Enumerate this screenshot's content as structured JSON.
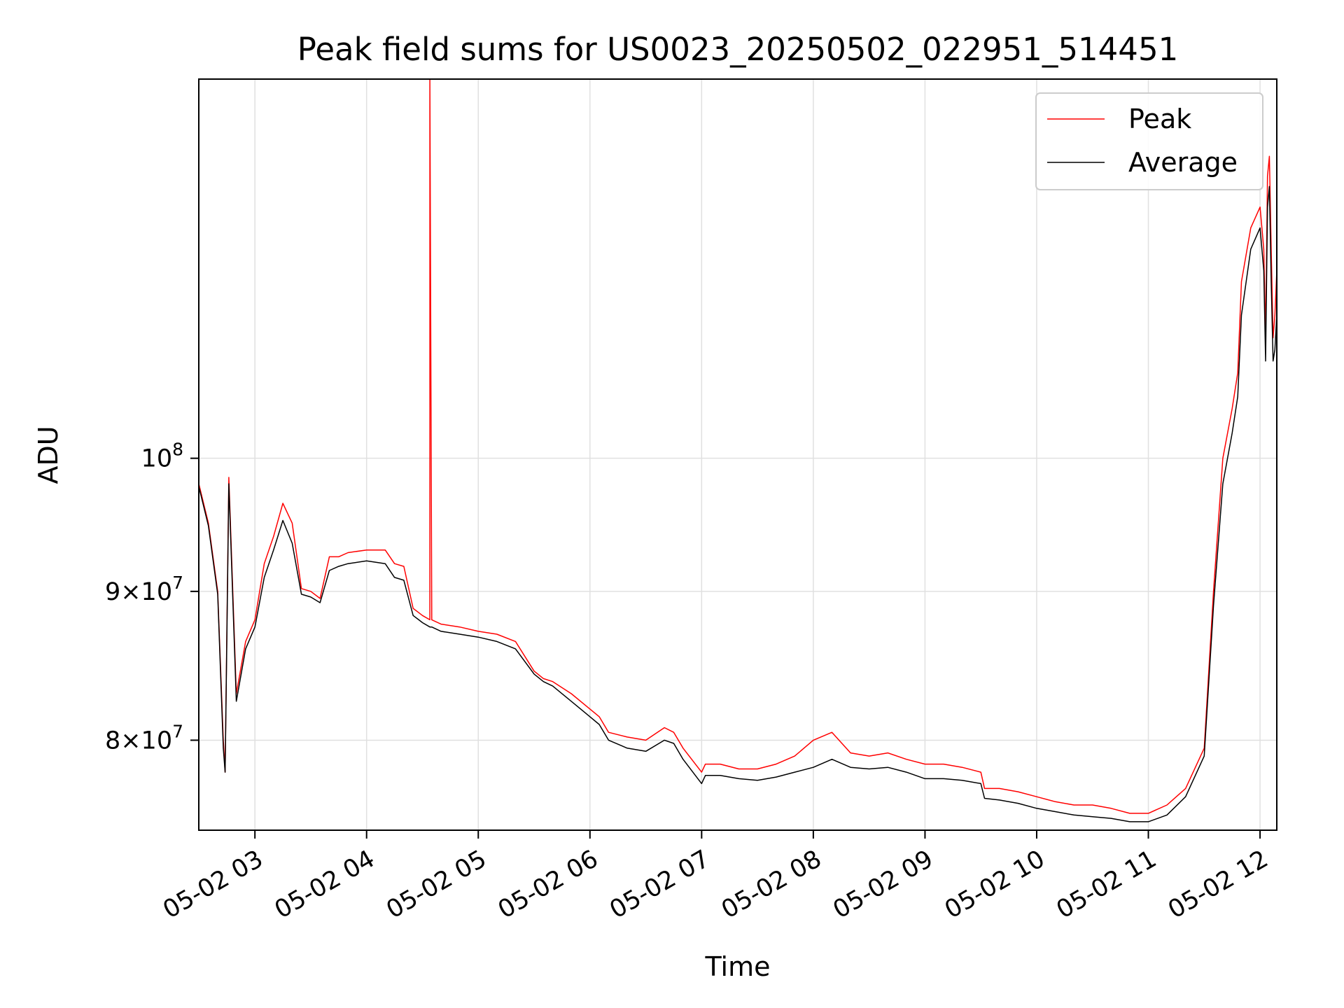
{
  "chart_data": {
    "type": "line",
    "title": "Peak field sums for US0023_20250502_022951_514451",
    "xlabel": "Time",
    "ylabel": "ADU",
    "x_type": "datetime",
    "y_scale": "log",
    "xlim": [
      "2025-05-02 02:29:51",
      "2025-05-02 12:09:00"
    ],
    "ylim": [
      74500000,
      135000000
    ],
    "x_ticks": [
      "05-02 03",
      "05-02 04",
      "05-02 05",
      "05-02 06",
      "05-02 07",
      "05-02 08",
      "05-02 09",
      "05-02 10",
      "05-02 11",
      "05-02 12"
    ],
    "y_ticks": [
      {
        "value": 80000000,
        "base": "8",
        "sup": "7"
      },
      {
        "value": 90000000,
        "base": "9",
        "sup": "7"
      },
      {
        "value": 100000000,
        "base": "10",
        "sup": "8"
      }
    ],
    "grid": true,
    "legend": "upper right",
    "series": [
      {
        "name": "Peak",
        "color": "#ff0000",
        "x": [
          "02:29:51",
          "02:35",
          "02:40",
          "02:43",
          "02:44",
          "02:45",
          "02:46",
          "02:50",
          "02:55",
          "03:00",
          "03:05",
          "03:10",
          "03:15",
          "03:20",
          "03:25",
          "03:30",
          "03:35",
          "03:40",
          "03:45",
          "03:50",
          "04:00",
          "04:10",
          "04:15",
          "04:20",
          "04:25",
          "04:28",
          "04:30",
          "04:34",
          "04:34",
          "04:35",
          "04:40",
          "04:50",
          "05:00",
          "05:10",
          "05:20",
          "05:30",
          "05:35",
          "05:40",
          "05:50",
          "06:00",
          "06:05",
          "06:10",
          "06:20",
          "06:30",
          "06:40",
          "06:45",
          "06:50",
          "07:00",
          "07:02",
          "07:10",
          "07:20",
          "07:30",
          "07:40",
          "07:50",
          "08:00",
          "08:10",
          "08:20",
          "08:30",
          "08:40",
          "08:50",
          "09:00",
          "09:10",
          "09:20",
          "09:30",
          "09:32",
          "09:40",
          "09:50",
          "10:00",
          "10:10",
          "10:20",
          "10:30",
          "10:40",
          "10:50",
          "11:00",
          "11:10",
          "11:20",
          "11:30",
          "11:35",
          "11:40",
          "11:45",
          "11:48",
          "11:50",
          "11:55",
          "12:00",
          "12:02",
          "12:03",
          "12:04",
          "12:05",
          "12:06",
          "12:07",
          "12:08",
          "12:09"
        ],
        "y": [
          98000000,
          95000000,
          90000000,
          80000000,
          78000000,
          88000000,
          98500000,
          83000000,
          86500000,
          88000000,
          92000000,
          94000000,
          96500000,
          95000000,
          90200000,
          90000000,
          89500000,
          92500000,
          92500000,
          92800000,
          93000000,
          93000000,
          92000000,
          91800000,
          88800000,
          88500000,
          88300000,
          88000000,
          135000000,
          88000000,
          87700000,
          87500000,
          87200000,
          87000000,
          86500000,
          84500000,
          84000000,
          83800000,
          83000000,
          82000000,
          81500000,
          80500000,
          80200000,
          80000000,
          80800000,
          80500000,
          79500000,
          78000000,
          78500000,
          78500000,
          78200000,
          78200000,
          78500000,
          79000000,
          80000000,
          80500000,
          79200000,
          79000000,
          79200000,
          78800000,
          78500000,
          78500000,
          78300000,
          78000000,
          77000000,
          77000000,
          76800000,
          76500000,
          76200000,
          76000000,
          76000000,
          75800000,
          75500000,
          75500000,
          76000000,
          77000000,
          79500000,
          90000000,
          100000000,
          104000000,
          107000000,
          115000000,
          120000000,
          122000000,
          118000000,
          110000000,
          125000000,
          127000000,
          118000000,
          110000000,
          112000000,
          116000000
        ]
      },
      {
        "name": "Average",
        "color": "#000000",
        "x": [
          "02:29:51",
          "02:35",
          "02:40",
          "02:43",
          "02:44",
          "02:45",
          "02:46",
          "02:50",
          "02:55",
          "03:00",
          "03:05",
          "03:10",
          "03:15",
          "03:20",
          "03:25",
          "03:30",
          "03:35",
          "03:40",
          "03:45",
          "03:50",
          "04:00",
          "04:10",
          "04:15",
          "04:20",
          "04:25",
          "04:28",
          "04:30",
          "04:34",
          "04:35",
          "04:40",
          "04:50",
          "05:00",
          "05:10",
          "05:20",
          "05:30",
          "05:35",
          "05:40",
          "05:50",
          "06:00",
          "06:05",
          "06:10",
          "06:20",
          "06:30",
          "06:40",
          "06:45",
          "06:50",
          "07:00",
          "07:02",
          "07:10",
          "07:20",
          "07:30",
          "07:40",
          "07:50",
          "08:00",
          "08:10",
          "08:20",
          "08:30",
          "08:40",
          "08:50",
          "09:00",
          "09:10",
          "09:20",
          "09:30",
          "09:32",
          "09:40",
          "09:50",
          "10:00",
          "10:10",
          "10:20",
          "10:30",
          "10:40",
          "10:50",
          "11:00",
          "11:10",
          "11:20",
          "11:30",
          "11:35",
          "11:40",
          "11:45",
          "11:48",
          "11:50",
          "11:55",
          "12:00",
          "12:02",
          "12:03",
          "12:04",
          "12:05",
          "12:06",
          "12:07",
          "12:08",
          "12:09"
        ],
        "y": [
          97800000,
          94800000,
          89800000,
          79500000,
          78000000,
          87500000,
          98000000,
          82500000,
          86000000,
          87500000,
          91000000,
          93000000,
          95200000,
          93500000,
          89800000,
          89600000,
          89200000,
          91500000,
          91800000,
          92000000,
          92200000,
          92000000,
          91000000,
          90800000,
          88300000,
          88000000,
          87800000,
          87500000,
          87500000,
          87200000,
          87000000,
          86800000,
          86500000,
          86000000,
          84300000,
          83800000,
          83500000,
          82500000,
          81500000,
          81000000,
          80000000,
          79500000,
          79300000,
          80000000,
          79800000,
          78800000,
          77300000,
          77800000,
          77800000,
          77600000,
          77500000,
          77700000,
          78000000,
          78300000,
          78800000,
          78300000,
          78200000,
          78300000,
          78000000,
          77600000,
          77600000,
          77500000,
          77300000,
          76400000,
          76300000,
          76100000,
          75800000,
          75600000,
          75400000,
          75300000,
          75200000,
          75000000,
          75000000,
          75400000,
          76500000,
          79000000,
          89000000,
          98000000,
          102000000,
          105000000,
          112000000,
          118000000,
          120000000,
          116000000,
          108000000,
          122000000,
          124000000,
          115000000,
          108000000,
          109000000,
          112000000
        ]
      }
    ]
  }
}
